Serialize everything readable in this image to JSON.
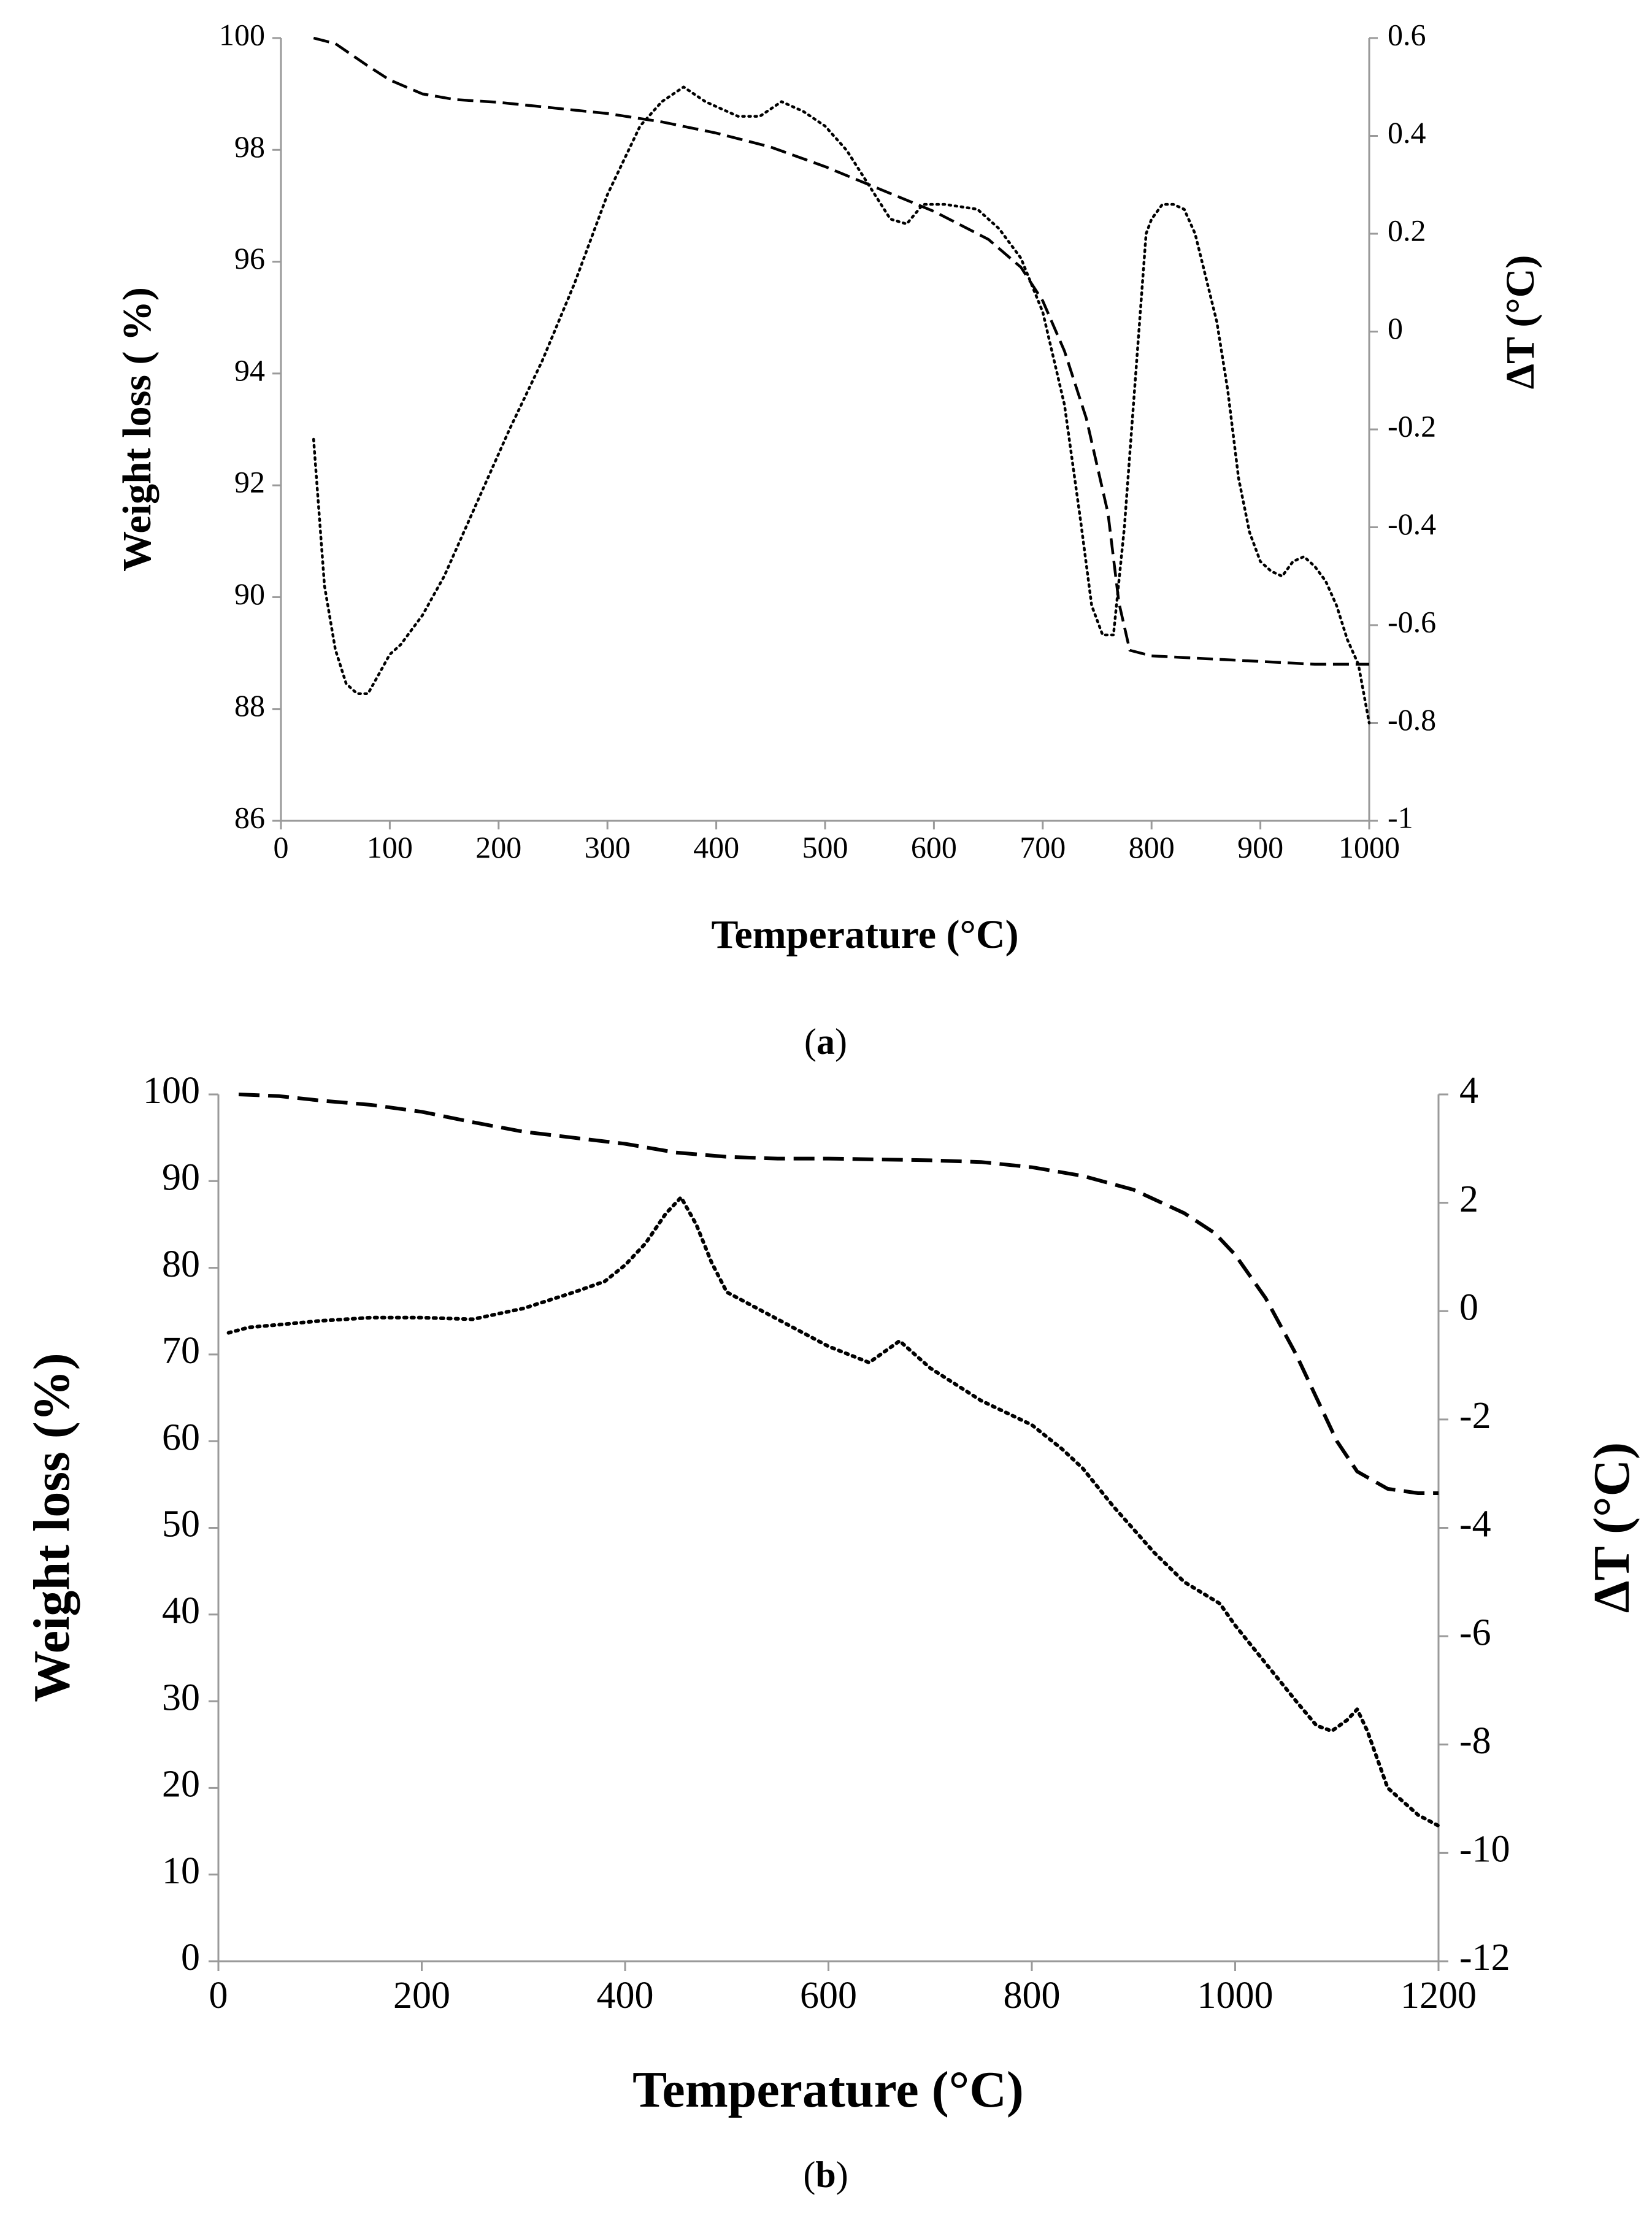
{
  "chart_data": [
    {
      "panel": "a",
      "type": "line",
      "caption_open": "(",
      "caption_letter": "a",
      "caption_close": ")",
      "xlabel": "Temperature (°C)",
      "ylabel_left": "Weight  loss ( %)",
      "ylabel_right": "ΔT (°C)",
      "xlim": [
        0,
        1000
      ],
      "ylim_left": [
        86,
        100
      ],
      "ylim_right": [
        -1,
        0.6
      ],
      "x_ticks": [
        "0",
        "100",
        "200",
        "300",
        "400",
        "500",
        "600",
        "700",
        "800",
        "900",
        "1000"
      ],
      "y_left_ticks": [
        "86",
        "88",
        "90",
        "92",
        "94",
        "96",
        "98",
        "100"
      ],
      "y_right_ticks": [
        "-1",
        "-0.8",
        "-0.6",
        "-0.4",
        "-0.2",
        "0",
        "0.2",
        "0.4",
        "0.6"
      ],
      "series": [
        {
          "name": "Weight loss",
          "axis": "left",
          "style": "dashed",
          "x": [
            30,
            50,
            80,
            100,
            130,
            160,
            200,
            250,
            300,
            350,
            400,
            450,
            500,
            550,
            600,
            650,
            680,
            700,
            720,
            740,
            760,
            770,
            780,
            800,
            850,
            900,
            950,
            1000
          ],
          "y": [
            100,
            99.9,
            99.5,
            99.25,
            99.0,
            98.9,
            98.85,
            98.75,
            98.65,
            98.5,
            98.3,
            98.05,
            97.7,
            97.3,
            96.9,
            96.4,
            95.9,
            95.3,
            94.4,
            93.2,
            91.5,
            89.9,
            89.05,
            88.95,
            88.9,
            88.85,
            88.8,
            88.8
          ]
        },
        {
          "name": "ΔT",
          "axis": "right",
          "style": "dotted",
          "x": [
            30,
            40,
            50,
            60,
            70,
            80,
            90,
            100,
            110,
            130,
            150,
            180,
            210,
            240,
            270,
            300,
            330,
            350,
            370,
            390,
            400,
            420,
            440,
            460,
            480,
            500,
            520,
            540,
            560,
            575,
            590,
            610,
            640,
            660,
            680,
            700,
            720,
            735,
            745,
            755,
            765,
            775,
            785,
            795,
            800,
            810,
            820,
            830,
            840,
            860,
            870,
            880,
            890,
            900,
            910,
            920,
            930,
            940,
            950,
            960,
            970,
            980,
            990,
            1000
          ],
          "y": [
            -0.22,
            -0.52,
            -0.65,
            -0.72,
            -0.74,
            -0.74,
            -0.7,
            -0.66,
            -0.64,
            -0.58,
            -0.5,
            -0.35,
            -0.2,
            -0.06,
            0.1,
            0.28,
            0.42,
            0.47,
            0.5,
            0.47,
            0.46,
            0.44,
            0.44,
            0.47,
            0.45,
            0.42,
            0.37,
            0.3,
            0.23,
            0.22,
            0.26,
            0.26,
            0.25,
            0.21,
            0.15,
            0.04,
            -0.15,
            -0.39,
            -0.56,
            -0.62,
            -0.62,
            -0.4,
            -0.1,
            0.2,
            0.23,
            0.26,
            0.26,
            0.25,
            0.2,
            0.02,
            -0.12,
            -0.3,
            -0.41,
            -0.47,
            -0.49,
            -0.5,
            -0.47,
            -0.46,
            -0.48,
            -0.51,
            -0.56,
            -0.63,
            -0.68,
            -0.8
          ]
        }
      ]
    },
    {
      "panel": "b",
      "type": "line",
      "caption_open": "(",
      "caption_letter": "b",
      "caption_close": ")",
      "xlabel": "Temperature (°C)",
      "ylabel_left": "Weight loss (%)",
      "ylabel_right": "ΔT (°C)",
      "xlim": [
        0,
        1200
      ],
      "ylim_left": [
        0,
        100
      ],
      "ylim_right": [
        -12,
        4
      ],
      "x_ticks": [
        "0",
        "200",
        "400",
        "600",
        "800",
        "1000",
        "1200"
      ],
      "y_left_ticks": [
        "0",
        "10",
        "20",
        "30",
        "40",
        "50",
        "60",
        "70",
        "80",
        "90",
        "100"
      ],
      "y_right_ticks": [
        "-12",
        "-10",
        "-8",
        "-6",
        "-4",
        "-2",
        "0",
        "2",
        "4"
      ],
      "series": [
        {
          "name": "Weight loss",
          "axis": "left",
          "style": "dashed",
          "x": [
            20,
            60,
            100,
            150,
            200,
            250,
            300,
            350,
            400,
            450,
            500,
            550,
            600,
            650,
            700,
            750,
            800,
            850,
            900,
            950,
            980,
            1000,
            1030,
            1060,
            1080,
            1100,
            1120,
            1150,
            1180,
            1200
          ],
          "y": [
            100,
            99.8,
            99.3,
            98.8,
            98.0,
            96.8,
            95.7,
            95.0,
            94.3,
            93.3,
            92.8,
            92.6,
            92.6,
            92.5,
            92.4,
            92.2,
            91.6,
            90.6,
            89.0,
            86.3,
            84.0,
            81.5,
            76.5,
            70.0,
            65.0,
            60.0,
            56.5,
            54.5,
            54.0,
            54.0
          ]
        },
        {
          "name": "ΔT",
          "axis": "right",
          "style": "dotted",
          "x": [
            10,
            30,
            60,
            100,
            150,
            200,
            250,
            300,
            350,
            380,
            400,
            420,
            440,
            455,
            470,
            485,
            500,
            550,
            600,
            640,
            655,
            670,
            700,
            750,
            800,
            830,
            850,
            880,
            920,
            950,
            985,
            1000,
            1030,
            1060,
            1080,
            1095,
            1110,
            1120,
            1130,
            1150,
            1180,
            1200
          ],
          "y": [
            -0.4,
            -0.3,
            -0.25,
            -0.18,
            -0.12,
            -0.12,
            -0.15,
            0.05,
            0.35,
            0.55,
            0.85,
            1.25,
            1.8,
            2.1,
            1.6,
            0.9,
            0.35,
            -0.15,
            -0.65,
            -0.95,
            -0.75,
            -0.55,
            -1.05,
            -1.65,
            -2.1,
            -2.55,
            -2.9,
            -3.6,
            -4.45,
            -5.0,
            -5.4,
            -5.8,
            -6.5,
            -7.2,
            -7.65,
            -7.75,
            -7.55,
            -7.35,
            -7.75,
            -8.8,
            -9.3,
            -9.5
          ]
        }
      ]
    }
  ]
}
